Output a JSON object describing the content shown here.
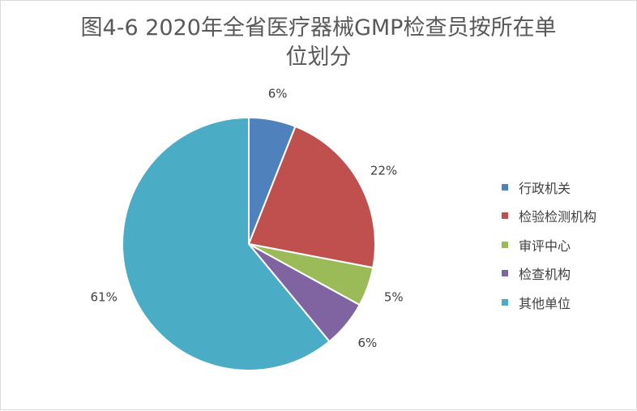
{
  "chart_data": {
    "type": "pie",
    "title": "图4-6  2020年全省医疗器械GMP检查员按所在单位划分",
    "categories": [
      "行政机关",
      "检验检测机构",
      "审评中心",
      "检查机构",
      "其他单位"
    ],
    "values": [
      6,
      22,
      5,
      6,
      61
    ],
    "value_labels": [
      "6%",
      "22%",
      "5%",
      "6%",
      "61%"
    ],
    "colors": [
      "#4f81bd",
      "#c0504d",
      "#9bbb59",
      "#8064a2",
      "#4bacc6"
    ],
    "start_angle": "12 o'clock",
    "direction": "clockwise",
    "legend_position": "right"
  },
  "title_lines": [
    "图4-6  2020年全省医疗器械GMP检查员按所在单",
    "位划分"
  ]
}
